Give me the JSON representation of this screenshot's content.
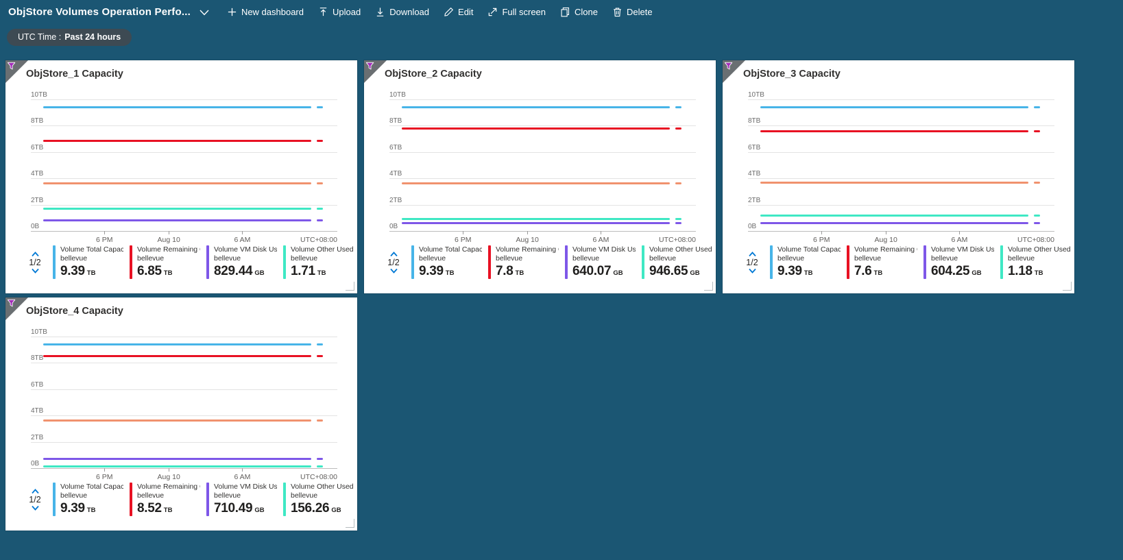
{
  "toolbar": {
    "title": "ObjStore Volumes Operation Perfo...",
    "commands": [
      {
        "id": "new-dashboard",
        "label": "New dashboard",
        "icon": "plus-icon"
      },
      {
        "id": "upload",
        "label": "Upload",
        "icon": "upload-icon"
      },
      {
        "id": "download",
        "label": "Download",
        "icon": "download-icon"
      },
      {
        "id": "edit",
        "label": "Edit",
        "icon": "pencil-icon"
      },
      {
        "id": "fullscreen",
        "label": "Full screen",
        "icon": "fullscreen-icon"
      },
      {
        "id": "clone",
        "label": "Clone",
        "icon": "copy-icon"
      },
      {
        "id": "delete",
        "label": "Delete",
        "icon": "trash-icon"
      }
    ]
  },
  "time_filter": {
    "prefix": "UTC Time :",
    "value": "Past 24 hours"
  },
  "colors": {
    "background": "#1b5673",
    "series_blue": "#47b4e8",
    "series_red": "#e81123",
    "series_purple": "#7e57e8",
    "series_teal": "#3fe8c4",
    "series_orange": "#f0926e",
    "funnel_purple": "#a12bb8",
    "pager_chevron_blue": "#0078d4"
  },
  "chart_data": [
    {
      "type": "line",
      "title": "ObjStore_1 Capacity",
      "y_ticks": [
        "10TB",
        "8TB",
        "6TB",
        "4TB",
        "2TB",
        "0B"
      ],
      "ylim_tb": [
        0,
        10
      ],
      "x_ticks": [
        "6 PM",
        "Aug 10",
        "6 AM"
      ],
      "x_right_label": "UTC+08:00",
      "grid": true,
      "legend_position": "bottom",
      "legend_pager": "1/2",
      "series": [
        {
          "name": "Volume Total Capacit...",
          "resource": "bellevue",
          "color": "#47b4e8",
          "value_tb": 9.39,
          "display_value": "9.39",
          "display_unit": "TB",
          "in_legend": true
        },
        {
          "name": "Volume Remaining Cap...",
          "resource": "bellevue",
          "color": "#e81123",
          "value_tb": 6.85,
          "display_value": "6.85",
          "display_unit": "TB",
          "in_legend": true
        },
        {
          "name": "Volume VM Disk Used ...",
          "resource": "bellevue",
          "color": "#7e57e8",
          "value_tb": 0.81,
          "display_value": "829.44",
          "display_unit": "GB",
          "in_legend": true
        },
        {
          "name": "Volume Other Used Ca...",
          "resource": "bellevue",
          "color": "#3fe8c4",
          "value_tb": 1.71,
          "display_value": "1.71",
          "display_unit": "TB",
          "in_legend": true
        },
        {
          "name": "",
          "resource": "",
          "color": "#f0926e",
          "value_tb": 3.6,
          "display_value": "",
          "display_unit": "",
          "in_legend": false
        }
      ]
    },
    {
      "type": "line",
      "title": "ObjStore_2 Capacity",
      "y_ticks": [
        "10TB",
        "8TB",
        "6TB",
        "4TB",
        "2TB",
        "0B"
      ],
      "ylim_tb": [
        0,
        10
      ],
      "x_ticks": [
        "6 PM",
        "Aug 10",
        "6 AM"
      ],
      "x_right_label": "UTC+08:00",
      "grid": true,
      "legend_position": "bottom",
      "legend_pager": "1/2",
      "series": [
        {
          "name": "Volume Total Capacit...",
          "resource": "bellevue",
          "color": "#47b4e8",
          "value_tb": 9.39,
          "display_value": "9.39",
          "display_unit": "TB",
          "in_legend": true
        },
        {
          "name": "Volume Remaining Cap...",
          "resource": "bellevue",
          "color": "#e81123",
          "value_tb": 7.8,
          "display_value": "7.8",
          "display_unit": "TB",
          "in_legend": true
        },
        {
          "name": "Volume VM Disk Used ...",
          "resource": "bellevue",
          "color": "#7e57e8",
          "value_tb": 0.625,
          "display_value": "640.07",
          "display_unit": "GB",
          "in_legend": true
        },
        {
          "name": "Volume Other Used Ca...",
          "resource": "bellevue",
          "color": "#3fe8c4",
          "value_tb": 0.924,
          "display_value": "946.65",
          "display_unit": "GB",
          "in_legend": true
        },
        {
          "name": "",
          "resource": "",
          "color": "#f0926e",
          "value_tb": 3.6,
          "display_value": "",
          "display_unit": "",
          "in_legend": false
        }
      ]
    },
    {
      "type": "line",
      "title": "ObjStore_3 Capacity",
      "y_ticks": [
        "10TB",
        "8TB",
        "6TB",
        "4TB",
        "2TB",
        "0B"
      ],
      "ylim_tb": [
        0,
        10
      ],
      "x_ticks": [
        "6 PM",
        "Aug 10",
        "6 AM"
      ],
      "x_right_label": "UTC+08:00",
      "grid": true,
      "legend_position": "bottom",
      "legend_pager": "1/2",
      "series": [
        {
          "name": "Volume Total Capacit...",
          "resource": "bellevue",
          "color": "#47b4e8",
          "value_tb": 9.39,
          "display_value": "9.39",
          "display_unit": "TB",
          "in_legend": true
        },
        {
          "name": "Volume Remaining Cap...",
          "resource": "bellevue",
          "color": "#e81123",
          "value_tb": 7.6,
          "display_value": "7.6",
          "display_unit": "TB",
          "in_legend": true
        },
        {
          "name": "Volume VM Disk Used ...",
          "resource": "bellevue",
          "color": "#7e57e8",
          "value_tb": 0.59,
          "display_value": "604.25",
          "display_unit": "GB",
          "in_legend": true
        },
        {
          "name": "Volume Other Used Ca...",
          "resource": "bellevue",
          "color": "#3fe8c4",
          "value_tb": 1.18,
          "display_value": "1.18",
          "display_unit": "TB",
          "in_legend": true
        },
        {
          "name": "",
          "resource": "",
          "color": "#f0926e",
          "value_tb": 3.65,
          "display_value": "",
          "display_unit": "",
          "in_legend": false
        }
      ]
    },
    {
      "type": "line",
      "title": "ObjStore_4 Capacity",
      "y_ticks": [
        "10TB",
        "8TB",
        "6TB",
        "4TB",
        "2TB",
        "0B"
      ],
      "ylim_tb": [
        0,
        10
      ],
      "x_ticks": [
        "6 PM",
        "Aug 10",
        "6 AM"
      ],
      "x_right_label": "UTC+08:00",
      "grid": true,
      "legend_position": "bottom",
      "legend_pager": "1/2",
      "series": [
        {
          "name": "Volume Total Capacit...",
          "resource": "bellevue",
          "color": "#47b4e8",
          "value_tb": 9.39,
          "display_value": "9.39",
          "display_unit": "TB",
          "in_legend": true
        },
        {
          "name": "Volume Remaining Cap...",
          "resource": "bellevue",
          "color": "#e81123",
          "value_tb": 8.52,
          "display_value": "8.52",
          "display_unit": "TB",
          "in_legend": true
        },
        {
          "name": "Volume VM Disk Used ...",
          "resource": "bellevue",
          "color": "#7e57e8",
          "value_tb": 0.694,
          "display_value": "710.49",
          "display_unit": "GB",
          "in_legend": true
        },
        {
          "name": "Volume Other Used Ca...",
          "resource": "bellevue",
          "color": "#3fe8c4",
          "value_tb": 0.153,
          "display_value": "156.26",
          "display_unit": "GB",
          "in_legend": true
        },
        {
          "name": "",
          "resource": "",
          "color": "#f0926e",
          "value_tb": 3.6,
          "display_value": "",
          "display_unit": "",
          "in_legend": false
        }
      ]
    }
  ]
}
